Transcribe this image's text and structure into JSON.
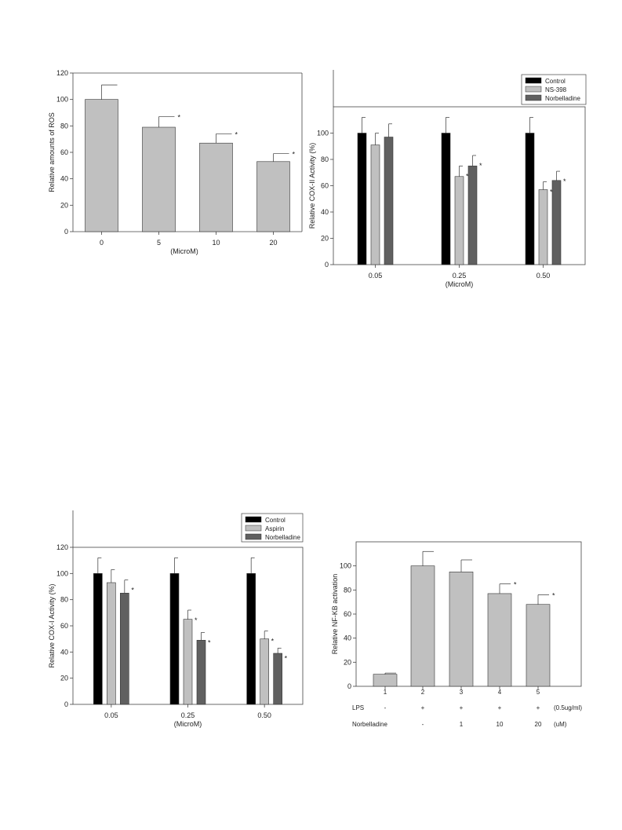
{
  "chart_data": [
    {
      "id": "ros",
      "type": "bar",
      "ylabel": "Relative amounts of ROS",
      "xlabel": "(MicroM)",
      "categories": [
        "0",
        "5",
        "10",
        "20"
      ],
      "ylim": [
        0,
        120
      ],
      "yticks": [
        0,
        20,
        40,
        60,
        80,
        100,
        120
      ],
      "series": [
        {
          "values": [
            100,
            79,
            67,
            53
          ],
          "errors": [
            11,
            8,
            7,
            6
          ],
          "significant": [
            false,
            true,
            true,
            true
          ],
          "color": "#c0c0c0"
        }
      ],
      "sig_mark": "*"
    },
    {
      "id": "cox2",
      "type": "bar",
      "ylabel": "Relative COX-II Activity (%)",
      "xlabel": "(MicroM)",
      "categories": [
        "0.05",
        "0.25",
        "0.50"
      ],
      "ylim": [
        0,
        120
      ],
      "yticks": [
        0,
        20,
        40,
        60,
        80,
        100
      ],
      "legend": "top-right",
      "series": [
        {
          "name": "Control",
          "values": [
            100,
            100,
            100
          ],
          "errors": [
            12,
            12,
            12
          ],
          "significant": [
            false,
            false,
            false
          ],
          "color": "#000000"
        },
        {
          "name": "NS-398",
          "values": [
            91,
            67,
            57
          ],
          "errors": [
            9,
            8,
            6
          ],
          "significant": [
            false,
            true,
            true
          ],
          "color": "#c0c0c0"
        },
        {
          "name": "Norbelladine",
          "values": [
            97,
            75,
            64
          ],
          "errors": [
            10,
            8,
            7
          ],
          "significant": [
            false,
            true,
            true
          ],
          "color": "#606060"
        }
      ],
      "sig_mark": "*"
    },
    {
      "id": "cox1",
      "type": "bar",
      "ylabel": "Relative COX-I Activity (%)",
      "xlabel": "(MicroM)",
      "categories": [
        "0.05",
        "0.25",
        "0.50"
      ],
      "ylim": [
        0,
        120
      ],
      "yticks": [
        0,
        20,
        40,
        60,
        80,
        100,
        120
      ],
      "legend": "top-right",
      "series": [
        {
          "name": "Control",
          "values": [
            100,
            100,
            100
          ],
          "errors": [
            12,
            12,
            12
          ],
          "significant": [
            false,
            false,
            false
          ],
          "color": "#000000"
        },
        {
          "name": "Aspirin",
          "values": [
            93,
            65,
            50
          ],
          "errors": [
            10,
            7,
            6
          ],
          "significant": [
            false,
            true,
            true
          ],
          "color": "#c0c0c0"
        },
        {
          "name": "Norbelladine",
          "values": [
            85,
            49,
            39
          ],
          "errors": [
            10,
            6,
            4
          ],
          "significant": [
            true,
            true,
            true
          ],
          "color": "#606060"
        }
      ],
      "sig_mark": "*"
    },
    {
      "id": "nfkb",
      "type": "bar",
      "ylabel": "Relative NF-KB activation",
      "categories": [
        "1",
        "2",
        "3",
        "4",
        "5"
      ],
      "ylim": [
        0,
        120
      ],
      "yticks": [
        0,
        20,
        40,
        60,
        80,
        100
      ],
      "series": [
        {
          "values": [
            10,
            100,
            95,
            77,
            68
          ],
          "errors": [
            1,
            12,
            10,
            8,
            8
          ],
          "significant": [
            false,
            false,
            false,
            true,
            true
          ],
          "color": "#c0c0c0"
        }
      ],
      "sig_mark": "*",
      "treatment_rows": [
        {
          "label": "LPS",
          "values": [
            "-",
            "+",
            "+",
            "+",
            "+"
          ],
          "unit": "(0.5ug/ml)"
        },
        {
          "label": "Norbelladine",
          "values": [
            "-",
            "-",
            "1",
            "10",
            "20"
          ],
          "unit": "(uM)"
        }
      ]
    }
  ]
}
